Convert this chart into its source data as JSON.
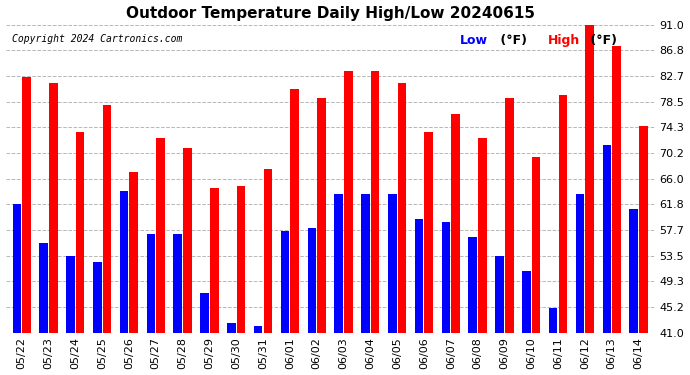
{
  "title": "Outdoor Temperature Daily High/Low 20240615",
  "copyright": "Copyright 2024 Cartronics.com",
  "dates": [
    "05/22",
    "05/23",
    "05/24",
    "05/25",
    "05/26",
    "05/27",
    "05/28",
    "05/29",
    "05/30",
    "05/31",
    "06/01",
    "06/02",
    "06/03",
    "06/04",
    "06/05",
    "06/06",
    "06/07",
    "06/08",
    "06/09",
    "06/10",
    "06/11",
    "06/12",
    "06/13",
    "06/14"
  ],
  "high_temps": [
    82.5,
    81.5,
    73.5,
    78.0,
    67.0,
    72.5,
    71.0,
    64.5,
    64.8,
    67.5,
    80.5,
    79.0,
    83.5,
    83.5,
    81.5,
    73.5,
    76.5,
    72.5,
    79.0,
    69.5,
    79.5,
    91.0,
    87.5,
    74.5
  ],
  "low_temps": [
    61.8,
    55.5,
    53.5,
    52.5,
    64.0,
    57.0,
    57.0,
    47.5,
    42.5,
    42.0,
    57.5,
    58.0,
    63.5,
    63.5,
    63.5,
    59.5,
    59.0,
    56.5,
    53.5,
    51.0,
    45.0,
    63.5,
    71.5,
    61.0
  ],
  "bar_color_high": "#ff0000",
  "bar_color_low": "#0000ff",
  "legend_low_color": "#0000ff",
  "legend_high_color": "#ff0000",
  "background_color": "#ffffff",
  "grid_color": "#b0b0b0",
  "yticks": [
    41.0,
    45.2,
    49.3,
    53.5,
    57.7,
    61.8,
    66.0,
    70.2,
    74.3,
    78.5,
    82.7,
    86.8,
    91.0
  ],
  "ylim": [
    41.0,
    91.0
  ],
  "title_fontsize": 11,
  "copyright_fontsize": 7,
  "tick_fontsize": 8,
  "legend_fontsize": 9,
  "bar_bottom": 41.0
}
